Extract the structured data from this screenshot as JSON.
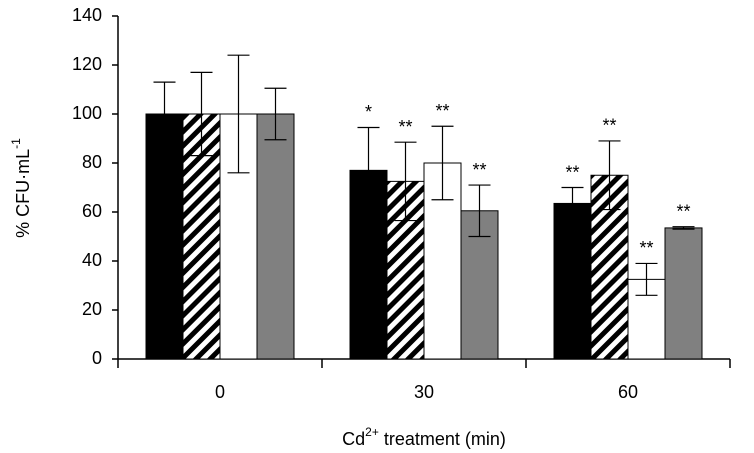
{
  "chart_data": {
    "type": "bar",
    "ylabel": [
      "% CFU·mL",
      "-1"
    ],
    "xlabel": [
      "Cd",
      "2+",
      " treatment (min)"
    ],
    "categories": [
      "0",
      "30",
      "60"
    ],
    "series": [
      {
        "color": "#000000",
        "values": [
          100,
          77,
          63.5
        ],
        "errors": [
          13,
          17.5,
          6.5
        ],
        "significance": [
          null,
          "*",
          "**"
        ]
      },
      {
        "color": "#000000",
        "pattern": "hatch",
        "values": [
          100,
          72.5,
          75
        ],
        "errors": [
          17,
          16,
          14
        ],
        "significance": [
          null,
          "**",
          "**"
        ]
      },
      {
        "color": "#ffffff",
        "values": [
          100,
          80,
          32.5
        ],
        "errors": [
          24,
          15,
          6.5
        ],
        "significance": [
          null,
          "**",
          "**"
        ]
      },
      {
        "color": "#808080",
        "values": [
          100,
          60.5,
          53.5
        ],
        "errors": [
          10.5,
          10.5,
          0.5
        ],
        "significance": [
          null,
          "**",
          "**"
        ]
      }
    ],
    "ylim": [
      0,
      140
    ],
    "yticks": [
      0,
      20,
      40,
      60,
      80,
      100,
      120,
      140
    ],
    "grid": false
  }
}
